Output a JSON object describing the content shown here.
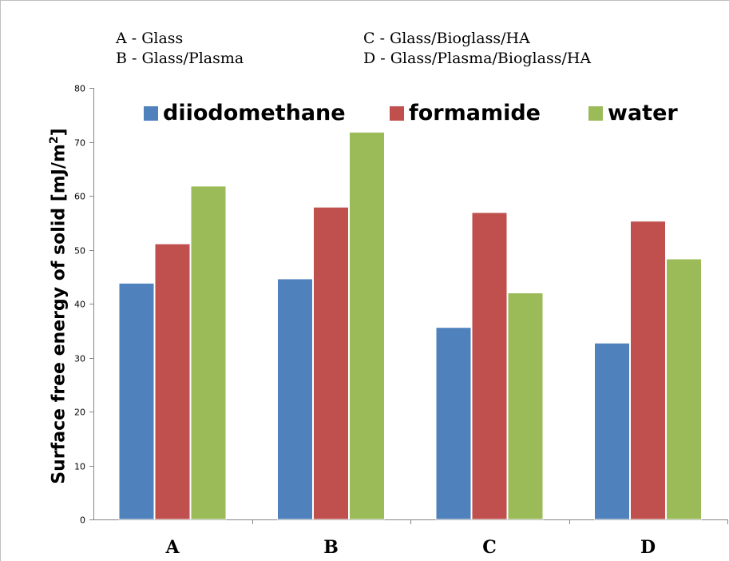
{
  "notes": {
    "a": "A - Glass",
    "b": "B - Glass/Plasma",
    "c": "C - Glass/Bioglass/HA",
    "d": "D - Glass/Plasma/Bioglass/HA"
  },
  "colors": {
    "diiodomethane": "#4f81bd",
    "formamide": "#c0504d",
    "water": "#9bbb59",
    "axis": "#868686",
    "gridline": "#d9d9d9"
  },
  "chart_data": {
    "type": "bar",
    "title": "",
    "xlabel": "",
    "ylabel": "Surface free energy of solid [mJ/m²]",
    "ylabel_main": "Surface free energy of solid [mJ/m",
    "ylabel_sup": "2",
    "ylabel_end": "]",
    "categories": [
      "A",
      "B",
      "C",
      "D"
    ],
    "ylim": [
      0,
      80
    ],
    "yticks": [
      "0",
      "10",
      "20",
      "30",
      "40",
      "50",
      "60",
      "70",
      "80"
    ],
    "grid": true,
    "legend_position": "top",
    "series": [
      {
        "name": "diiodomethane",
        "values": [
          43.8,
          44.6,
          35.6,
          32.7
        ]
      },
      {
        "name": "formamide",
        "values": [
          51.1,
          57.9,
          56.9,
          55.3
        ]
      },
      {
        "name": "water",
        "values": [
          61.8,
          71.8,
          42.0,
          48.3
        ]
      }
    ]
  }
}
